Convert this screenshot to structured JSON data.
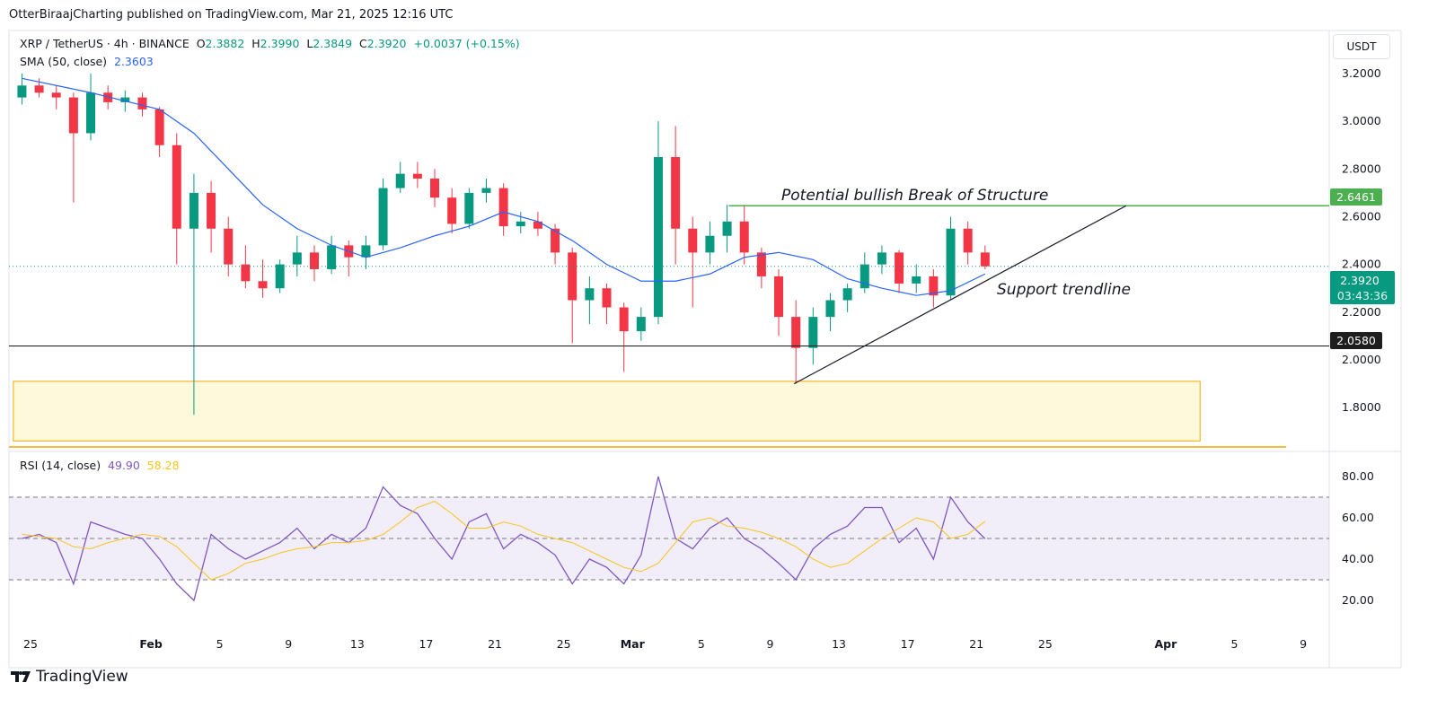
{
  "header": {
    "published": "OtterBiraajCharting published on TradingView.com, Mar 21, 2025 12:16 UTC"
  },
  "legend": {
    "symbol": "XRP / TetherUS · 4h · BINANCE",
    "o_label": "O",
    "o": "2.3882",
    "h_label": "H",
    "h": "2.3990",
    "l_label": "L",
    "l": "2.3849",
    "c_label": "C",
    "c": "2.3920",
    "change": "+0.0037 (+0.15%)",
    "sma_label": "SMA (50, close)",
    "sma_value": "2.3603",
    "rsi_label": "RSI (14, close)",
    "rsi_value": "49.90",
    "rsi_ma_value": "58.28"
  },
  "currency": "USDT",
  "price_badges": {
    "bos": "2.6461",
    "last": "2.3920",
    "countdown": "03:43:36",
    "support": "2.0580"
  },
  "annotations": {
    "bos_text": "Potential bullish Break of Structure",
    "trend_text": "Support trendline"
  },
  "branding": "TradingView",
  "colors": {
    "up": "#089981",
    "down": "#f23645",
    "sma": "#2962ff",
    "rsi": "#7e57c2",
    "rsi_ma": "#f7c51e",
    "bos_line": "#4caf50",
    "zone_fill": "#fff9db",
    "zone_border": "#f7a600"
  },
  "chart_data": [
    {
      "type": "candlestick",
      "title": "XRP / TetherUS",
      "ylim": [
        1.65,
        3.25
      ],
      "yticks": [
        "3.2000",
        "3.0000",
        "2.8000",
        "2.6000",
        "2.4000",
        "2.2000",
        "2.0000",
        "1.8000"
      ],
      "xticks": [
        {
          "date": "2025-01-25",
          "label": "25"
        },
        {
          "date": "2025-02-01",
          "label": "Feb"
        },
        {
          "date": "2025-02-05",
          "label": "5"
        },
        {
          "date": "2025-02-09",
          "label": "9"
        },
        {
          "date": "2025-02-13",
          "label": "13"
        },
        {
          "date": "2025-02-17",
          "label": "17"
        },
        {
          "date": "2025-02-21",
          "label": "21"
        },
        {
          "date": "2025-02-25",
          "label": "25"
        },
        {
          "date": "2025-03-01",
          "label": "Mar"
        },
        {
          "date": "2025-03-05",
          "label": "5"
        },
        {
          "date": "2025-03-09",
          "label": "9"
        },
        {
          "date": "2025-03-13",
          "label": "13"
        },
        {
          "date": "2025-03-17",
          "label": "17"
        },
        {
          "date": "2025-03-21",
          "label": "21"
        },
        {
          "date": "2025-03-25",
          "label": "25"
        },
        {
          "date": "2025-04-01",
          "label": "Apr"
        },
        {
          "date": "2025-04-05",
          "label": "5"
        },
        {
          "date": "2025-04-09",
          "label": "9"
        }
      ],
      "ohlc": [
        [
          "2025-01-24",
          3.1,
          3.2,
          3.07,
          3.15
        ],
        [
          "2025-01-25",
          3.15,
          3.18,
          3.1,
          3.12
        ],
        [
          "2025-01-26",
          3.12,
          3.15,
          3.05,
          3.1
        ],
        [
          "2025-01-27",
          3.1,
          3.12,
          2.66,
          2.95
        ],
        [
          "2025-01-28",
          2.95,
          3.2,
          2.92,
          3.12
        ],
        [
          "2025-01-29",
          3.12,
          3.15,
          3.05,
          3.08
        ],
        [
          "2025-01-30",
          3.08,
          3.13,
          3.04,
          3.1
        ],
        [
          "2025-01-31",
          3.1,
          3.12,
          3.02,
          3.05
        ],
        [
          "2025-02-01",
          3.05,
          3.06,
          2.85,
          2.9
        ],
        [
          "2025-02-02",
          2.9,
          2.95,
          2.4,
          2.55
        ],
        [
          "2025-02-03",
          2.55,
          2.78,
          1.77,
          2.7
        ],
        [
          "2025-02-04",
          2.7,
          2.75,
          2.45,
          2.55
        ],
        [
          "2025-02-05",
          2.55,
          2.6,
          2.35,
          2.4
        ],
        [
          "2025-02-06",
          2.4,
          2.48,
          2.3,
          2.33
        ],
        [
          "2025-02-07",
          2.33,
          2.42,
          2.26,
          2.3
        ],
        [
          "2025-02-08",
          2.3,
          2.42,
          2.28,
          2.4
        ],
        [
          "2025-02-09",
          2.4,
          2.52,
          2.35,
          2.45
        ],
        [
          "2025-02-10",
          2.45,
          2.48,
          2.33,
          2.38
        ],
        [
          "2025-02-11",
          2.38,
          2.52,
          2.36,
          2.48
        ],
        [
          "2025-02-12",
          2.48,
          2.5,
          2.35,
          2.43
        ],
        [
          "2025-02-13",
          2.43,
          2.52,
          2.38,
          2.48
        ],
        [
          "2025-02-14",
          2.48,
          2.76,
          2.46,
          2.72
        ],
        [
          "2025-02-15",
          2.72,
          2.83,
          2.7,
          2.78
        ],
        [
          "2025-02-16",
          2.78,
          2.83,
          2.72,
          2.76
        ],
        [
          "2025-02-17",
          2.76,
          2.8,
          2.64,
          2.68
        ],
        [
          "2025-02-18",
          2.68,
          2.72,
          2.53,
          2.57
        ],
        [
          "2025-02-19",
          2.57,
          2.72,
          2.55,
          2.7
        ],
        [
          "2025-02-20",
          2.7,
          2.76,
          2.66,
          2.72
        ],
        [
          "2025-02-21",
          2.72,
          2.74,
          2.52,
          2.56
        ],
        [
          "2025-02-22",
          2.56,
          2.62,
          2.53,
          2.58
        ],
        [
          "2025-02-23",
          2.58,
          2.62,
          2.52,
          2.55
        ],
        [
          "2025-02-24",
          2.55,
          2.57,
          2.4,
          2.45
        ],
        [
          "2025-02-25",
          2.45,
          2.47,
          2.07,
          2.25
        ],
        [
          "2025-02-26",
          2.25,
          2.35,
          2.15,
          2.3
        ],
        [
          "2025-02-27",
          2.3,
          2.32,
          2.15,
          2.22
        ],
        [
          "2025-02-28",
          2.22,
          2.24,
          1.95,
          2.12
        ],
        [
          "2025-03-01",
          2.12,
          2.22,
          2.08,
          2.18
        ],
        [
          "2025-03-02",
          2.18,
          3.0,
          2.15,
          2.85
        ],
        [
          "2025-03-03",
          2.85,
          2.98,
          2.4,
          2.55
        ],
        [
          "2025-03-04",
          2.55,
          2.6,
          2.22,
          2.45
        ],
        [
          "2025-03-05",
          2.45,
          2.58,
          2.4,
          2.52
        ],
        [
          "2025-03-06",
          2.52,
          2.65,
          2.45,
          2.58
        ],
        [
          "2025-03-07",
          2.58,
          2.65,
          2.4,
          2.45
        ],
        [
          "2025-03-08",
          2.45,
          2.47,
          2.3,
          2.35
        ],
        [
          "2025-03-09",
          2.35,
          2.38,
          2.1,
          2.18
        ],
        [
          "2025-03-10",
          2.18,
          2.25,
          1.9,
          2.05
        ],
        [
          "2025-03-11",
          2.05,
          2.22,
          1.98,
          2.18
        ],
        [
          "2025-03-12",
          2.18,
          2.28,
          2.12,
          2.25
        ],
        [
          "2025-03-13",
          2.25,
          2.32,
          2.2,
          2.3
        ],
        [
          "2025-03-14",
          2.3,
          2.45,
          2.28,
          2.4
        ],
        [
          "2025-03-15",
          2.4,
          2.48,
          2.36,
          2.45
        ],
        [
          "2025-03-16",
          2.45,
          2.46,
          2.28,
          2.32
        ],
        [
          "2025-03-17",
          2.32,
          2.4,
          2.28,
          2.35
        ],
        [
          "2025-03-18",
          2.35,
          2.38,
          2.22,
          2.27
        ],
        [
          "2025-03-19",
          2.27,
          2.6,
          2.25,
          2.55
        ],
        [
          "2025-03-20",
          2.55,
          2.58,
          2.4,
          2.45
        ],
        [
          "2025-03-21",
          2.45,
          2.48,
          2.38,
          2.392
        ]
      ],
      "sma50": [
        [
          "2025-01-24",
          3.18
        ],
        [
          "2025-01-28",
          3.12
        ],
        [
          "2025-02-01",
          3.05
        ],
        [
          "2025-02-03",
          2.95
        ],
        [
          "2025-02-05",
          2.8
        ],
        [
          "2025-02-07",
          2.65
        ],
        [
          "2025-02-09",
          2.55
        ],
        [
          "2025-02-11",
          2.48
        ],
        [
          "2025-02-13",
          2.43
        ],
        [
          "2025-02-15",
          2.47
        ],
        [
          "2025-02-17",
          2.52
        ],
        [
          "2025-02-19",
          2.56
        ],
        [
          "2025-02-21",
          2.62
        ],
        [
          "2025-02-23",
          2.58
        ],
        [
          "2025-02-25",
          2.5
        ],
        [
          "2025-02-27",
          2.4
        ],
        [
          "2025-03-01",
          2.33
        ],
        [
          "2025-03-03",
          2.33
        ],
        [
          "2025-03-05",
          2.36
        ],
        [
          "2025-03-07",
          2.43
        ],
        [
          "2025-03-09",
          2.45
        ],
        [
          "2025-03-11",
          2.42
        ],
        [
          "2025-03-13",
          2.34
        ],
        [
          "2025-03-15",
          2.3
        ],
        [
          "2025-03-17",
          2.27
        ],
        [
          "2025-03-19",
          2.29
        ],
        [
          "2025-03-21",
          2.36
        ]
      ],
      "levels": {
        "break_of_structure": 2.6461,
        "support": 2.058,
        "last": 2.392
      },
      "trendline": [
        [
          "2025-03-10",
          1.9
        ],
        [
          "2025-03-29",
          2.6461
        ]
      ],
      "demand_zone": {
        "from": "2025-01-24",
        "to": "2025-04-03",
        "top": 1.91,
        "bottom": 1.66
      }
    },
    {
      "type": "line",
      "title": "RSI (14, close)",
      "ylim": [
        10,
        88
      ],
      "yticks": [
        "80.00",
        "60.00",
        "40.00",
        "20.00"
      ],
      "bands": [
        30,
        50,
        70
      ],
      "dates_start": "2025-01-24",
      "series": [
        {
          "name": "RSI",
          "values": [
            50,
            52,
            48,
            28,
            58,
            55,
            52,
            50,
            40,
            28,
            20,
            52,
            45,
            40,
            44,
            48,
            55,
            45,
            52,
            48,
            55,
            75,
            66,
            62,
            50,
            40,
            58,
            62,
            45,
            52,
            48,
            42,
            28,
            40,
            36,
            28,
            42,
            80,
            50,
            45,
            55,
            60,
            50,
            45,
            38,
            30,
            45,
            52,
            56,
            65,
            65,
            48,
            55,
            40,
            70,
            58,
            49.9
          ]
        },
        {
          "name": "RSI MA",
          "values": [
            52,
            51,
            50,
            46,
            45,
            48,
            50,
            52,
            51,
            46,
            38,
            30,
            33,
            38,
            40,
            43,
            45,
            46,
            48,
            48,
            49,
            52,
            58,
            65,
            68,
            62,
            55,
            55,
            58,
            56,
            52,
            50,
            48,
            44,
            40,
            36,
            34,
            38,
            48,
            58,
            60,
            56,
            55,
            53,
            50,
            46,
            40,
            36,
            38,
            44,
            50,
            55,
            60,
            58,
            50,
            52,
            58.28
          ]
        }
      ]
    }
  ]
}
